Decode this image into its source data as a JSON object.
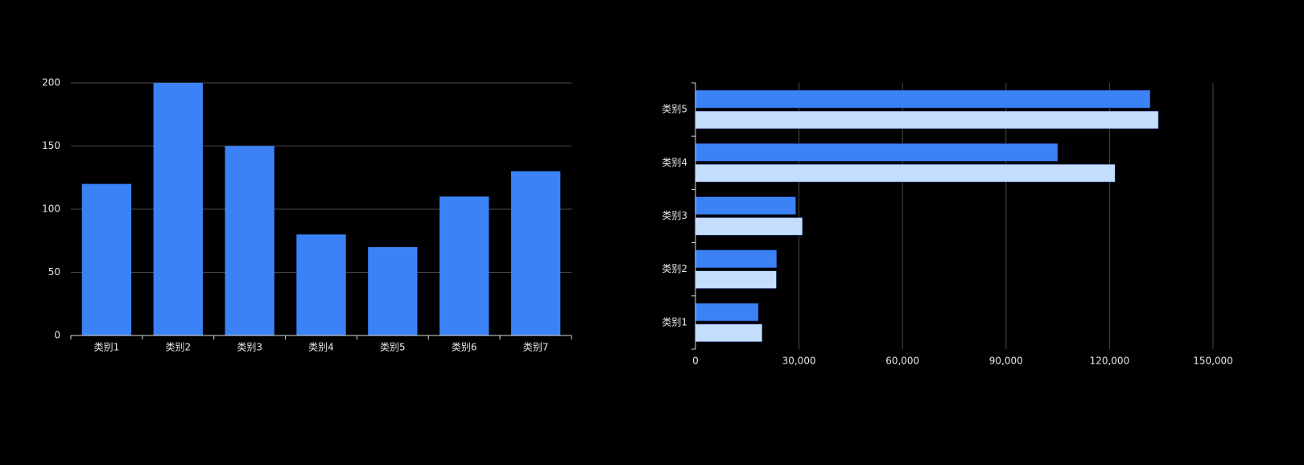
{
  "colors": {
    "background": "#000000",
    "bar_primary": "#3b82f6",
    "bar_secondary": "#c6defe",
    "gridline": "#4a4a4a",
    "axis": "#d9d9d9",
    "text": "#e6e6e6"
  },
  "chart_data": [
    {
      "type": "bar",
      "orientation": "vertical",
      "categories": [
        "类别1",
        "类别2",
        "类别3",
        "类别4",
        "类别5",
        "类别6",
        "类别7"
      ],
      "values": [
        120,
        200,
        150,
        80,
        70,
        110,
        130
      ],
      "ylim": [
        0,
        200
      ],
      "yticks": [
        0,
        50,
        100,
        150,
        200
      ],
      "ytick_labels": [
        "0",
        "50",
        "100",
        "150",
        "200"
      ],
      "grid": "horizontal",
      "title": "",
      "xlabel": "",
      "ylabel": ""
    },
    {
      "type": "bar",
      "orientation": "horizontal",
      "categories": [
        "类别1",
        "类别2",
        "类别3",
        "类别4",
        "类别5"
      ],
      "series": [
        {
          "values": [
            18203,
            23489,
            29034,
            104970,
            131744
          ]
        },
        {
          "values": [
            19325,
            23438,
            31000,
            121594,
            134141
          ]
        }
      ],
      "xlim": [
        0,
        150000
      ],
      "xticks": [
        0,
        30000,
        60000,
        90000,
        120000,
        150000
      ],
      "xtick_labels": [
        "0",
        "30,000",
        "60,000",
        "90,000",
        "120,000",
        "150,000"
      ],
      "grid": "vertical",
      "title": "",
      "xlabel": "",
      "ylabel": ""
    }
  ]
}
